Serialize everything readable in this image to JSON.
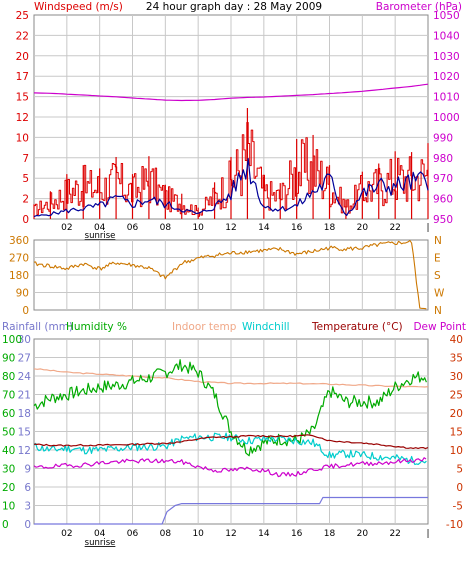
{
  "colors": {
    "wind": "#dd0000",
    "gust_line": "#000099",
    "baro": "#cc00cc",
    "direction": "#cc7700",
    "rain_axis": "#7777cc",
    "humidity": "#00aa00",
    "indoor_temp": "#f0a888",
    "windchill": "#00cccc",
    "temperature": "#990000",
    "dew_point": "#cc00cc",
    "rain_line": "#7777dd",
    "temp_axis": "#cc3300",
    "grid": "#c8c8c8",
    "frame": "#888888"
  },
  "chart_data": [
    {
      "type": "line",
      "title": "24 hour graph day : 28 May 2009",
      "ylabel_left": "Windspeed (m/s)",
      "ylabel_right": "Barometer (hPa)",
      "x_ticks": [
        "02",
        "04",
        "06",
        "08",
        "10",
        "12",
        "14",
        "16",
        "18",
        "20",
        "22"
      ],
      "x_end_tick": "|",
      "annotation": "sunrise",
      "ylim_left": [
        0,
        25
      ],
      "yticks_left": [
        "0",
        "2",
        "5",
        "7",
        "10",
        "12",
        "15",
        "17",
        "20",
        "22",
        "25"
      ],
      "ylim_right": [
        950,
        1050
      ],
      "yticks_right": [
        "950",
        "960",
        "970",
        "980",
        "990",
        "1000",
        "1010",
        "1020",
        "1030",
        "1040",
        "1050"
      ],
      "grid": true,
      "series": [
        {
          "kind": "barometer",
          "x": [
            0,
            1,
            2,
            3,
            4,
            5,
            6,
            7,
            8,
            9,
            10,
            11,
            12,
            13,
            14,
            15,
            16,
            17,
            18,
            19,
            20,
            21,
            22,
            23,
            24
          ],
          "values": [
            1011.8,
            1011.6,
            1011.2,
            1010.8,
            1010.3,
            1009.9,
            1009.3,
            1008.8,
            1008.3,
            1008.1,
            1008.2,
            1008.6,
            1009.2,
            1009.6,
            1009.8,
            1010.2,
            1010.6,
            1011.0,
            1011.5,
            1012.0,
            1012.6,
            1013.4,
            1014.2,
            1015.0,
            1016.1
          ]
        },
        {
          "kind": "wind_avg",
          "x": [
            0,
            1,
            2,
            3,
            4,
            5,
            6,
            7,
            8,
            9,
            10,
            11,
            12,
            13,
            14,
            15,
            16,
            17,
            18,
            19,
            20,
            21,
            22,
            23,
            24
          ],
          "values": [
            0.3,
            0.6,
            1.0,
            1.3,
            1.6,
            2.5,
            1.8,
            2.4,
            1.8,
            1.2,
            0.6,
            1.5,
            3.1,
            6.8,
            1.5,
            1.2,
            1.6,
            3.3,
            4.8,
            0.4,
            3.1,
            4.0,
            4.0,
            4.5,
            4.8
          ]
        },
        {
          "kind": "wind_gust",
          "x": [
            0,
            1,
            2,
            3,
            4,
            5,
            6,
            7,
            8,
            9,
            10,
            11,
            12,
            13,
            14,
            15,
            16,
            17,
            18,
            19,
            20,
            21,
            22,
            23,
            24
          ],
          "values": [
            1.8,
            3.4,
            5.5,
            6.6,
            6.2,
            7.6,
            5.5,
            7.7,
            4.2,
            3.1,
            1.4,
            4.5,
            7.6,
            13.6,
            5.2,
            4.4,
            9.8,
            10.3,
            6.6,
            2.4,
            5.8,
            6.8,
            8.3,
            8.2,
            9.3
          ]
        }
      ]
    },
    {
      "type": "line",
      "ylabel_left": "",
      "ylim_left": [
        0,
        360
      ],
      "yticks_left": [
        "0",
        "90",
        "180",
        "270",
        "360"
      ],
      "right_labels": [
        "N",
        "W",
        "S",
        "E",
        "N"
      ],
      "series": [
        {
          "kind": "wind_direction",
          "x": [
            0,
            1,
            2,
            3,
            4,
            5,
            6,
            7,
            8,
            9,
            10,
            11,
            12,
            13,
            14,
            15,
            16,
            17,
            18,
            19,
            20,
            21,
            22,
            23,
            23.5,
            24
          ],
          "values": [
            238,
            226,
            212,
            238,
            212,
            243,
            231,
            216,
            164,
            241,
            266,
            281,
            292,
            300,
            306,
            312,
            288,
            301,
            320,
            314,
            318,
            336,
            344,
            349,
            10,
            5
          ]
        }
      ]
    },
    {
      "type": "line",
      "legend": [
        "Rainfall (mm)",
        "Humidity %",
        "Indoor temp",
        "Windchill",
        "Temperature (°C)",
        "Dew Point"
      ],
      "x_ticks": [
        "02",
        "04",
        "06",
        "08",
        "10",
        "12",
        "14",
        "16",
        "18",
        "20",
        "22"
      ],
      "x_end_tick": "|",
      "annotation": "sunrise",
      "rain_ticks": [
        "0",
        "3",
        "6",
        "9",
        "12",
        "15",
        "18",
        "21",
        "24",
        "27",
        "30"
      ],
      "humidity_ticks": [
        "0",
        "10",
        "20",
        "30",
        "40",
        "50",
        "60",
        "70",
        "80",
        "90",
        "100"
      ],
      "temp_ticks": [
        "-10",
        "-5",
        "0",
        "5",
        "10",
        "15",
        "20",
        "25",
        "30",
        "35",
        "40"
      ],
      "ylim_humidity": [
        0,
        100
      ],
      "ylim_temperature": [
        -10,
        40
      ],
      "ylim_rainfall": [
        0,
        30
      ],
      "series": [
        {
          "kind": "humidity",
          "x": [
            0,
            1,
            2,
            3,
            4,
            5,
            6,
            7,
            8,
            9,
            10,
            11,
            12,
            13,
            14,
            15,
            16,
            17,
            18,
            19,
            20,
            21,
            22,
            23,
            24
          ],
          "values": [
            64,
            68,
            70,
            72,
            74,
            75,
            77,
            79,
            82,
            86,
            82,
            70,
            50,
            40,
            44,
            46,
            45,
            50,
            72,
            66,
            66,
            66,
            74,
            79,
            80
          ]
        },
        {
          "kind": "indoor_temp",
          "x": [
            0,
            2,
            4,
            6,
            8,
            10,
            12,
            14,
            16,
            18,
            20,
            22,
            24
          ],
          "values": [
            32,
            31,
            30.5,
            30,
            29.5,
            28.5,
            28,
            28,
            28,
            27.8,
            27.5,
            27.2,
            27
          ]
        },
        {
          "kind": "windchill",
          "x": [
            0,
            1,
            2,
            3,
            4,
            5,
            6,
            7,
            8,
            9,
            10,
            11,
            12,
            13,
            14,
            15,
            16,
            17,
            18,
            19,
            20,
            21,
            22,
            23,
            24
          ],
          "values": [
            11,
            10,
            10.5,
            10,
            10,
            10.3,
            10.8,
            10.9,
            11,
            13,
            13.5,
            13.5,
            13.5,
            12.5,
            13,
            13,
            12.5,
            12,
            8.5,
            9,
            8.6,
            8.2,
            7.8,
            7.2,
            7
          ]
        },
        {
          "kind": "temperature",
          "x": [
            0,
            1,
            2,
            3,
            4,
            5,
            6,
            7,
            8,
            9,
            10,
            11,
            12,
            13,
            14,
            15,
            16,
            17,
            18,
            19,
            20,
            21,
            22,
            23,
            24
          ],
          "values": [
            11.5,
            11.3,
            11.2,
            11.3,
            11.3,
            11.4,
            11.5,
            11.7,
            11.8,
            12.2,
            13,
            13.5,
            13.5,
            13.8,
            13.8,
            13.7,
            13.8,
            14,
            12.5,
            12.2,
            11.9,
            11.5,
            11,
            10.5,
            10.5
          ]
        },
        {
          "kind": "dew_point",
          "x": [
            0,
            1,
            2,
            3,
            4,
            5,
            6,
            7,
            8,
            9,
            10,
            11,
            12,
            13,
            14,
            15,
            16,
            17,
            18,
            19,
            20,
            21,
            22,
            23,
            24
          ],
          "values": [
            5.2,
            5.5,
            5.8,
            6,
            6.5,
            6.8,
            7,
            7.1,
            7,
            6.8,
            5.5,
            4.5,
            4.5,
            5,
            4.5,
            3.2,
            3.5,
            4.8,
            5.5,
            6,
            6.3,
            6.5,
            6.8,
            7.2,
            7.5
          ]
        },
        {
          "kind": "rainfall",
          "x": [
            0,
            7.8,
            8.1,
            8.6,
            9,
            17.4,
            17.6,
            24
          ],
          "values": [
            0,
            0,
            2,
            3,
            3.3,
            3.3,
            4.3,
            4.3
          ]
        }
      ]
    }
  ]
}
